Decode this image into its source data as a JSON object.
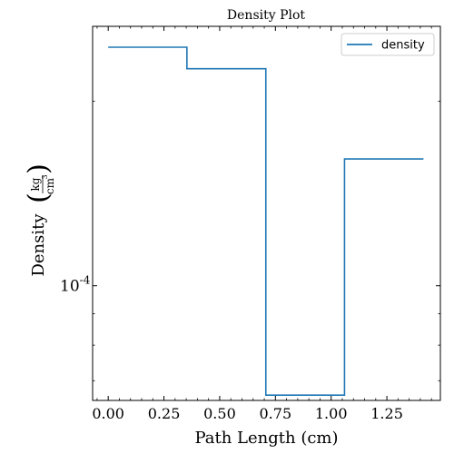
{
  "chart_data": {
    "type": "line",
    "title": "Density Plot",
    "xlabel": "Path Length  (cm)",
    "ylabel": {
      "main": "Density",
      "unit_numerator": "kg",
      "unit_denominator": "cm",
      "unit_denominator_exponent": "3"
    },
    "y_scale": "log",
    "xlim": [
      -0.07,
      1.49
    ],
    "ylim": [
      6.5e-05,
      0.000265
    ],
    "x_ticks": [
      0.0,
      0.25,
      0.5,
      0.75,
      1.0,
      1.25
    ],
    "x_tick_labels": [
      "0.00",
      "0.25",
      "0.50",
      "0.75",
      "1.00",
      "1.25"
    ],
    "y_tick_major": {
      "value": 0.0001,
      "base": "10",
      "exponent": "-4"
    },
    "legend": {
      "position": "top-right",
      "entries": [
        "density"
      ]
    },
    "grid": false,
    "series": [
      {
        "name": "density",
        "color": "#1f77b4",
        "step": true,
        "x": [
          0.0,
          0.353,
          0.353,
          0.707,
          0.707,
          1.06,
          1.06,
          1.414
        ],
        "y": [
          0.000245,
          0.000245,
          0.000226,
          0.000226,
          6.63e-05,
          6.63e-05,
          0.000161,
          0.000161
        ]
      }
    ]
  }
}
